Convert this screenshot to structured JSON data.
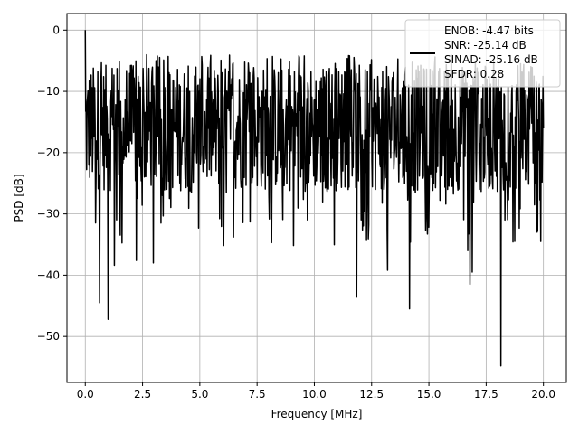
{
  "chart_data": {
    "type": "line",
    "xlabel": "Frequency [MHz]",
    "ylabel": "PSD [dB]",
    "xlim": [
      -0.8,
      21.0
    ],
    "ylim": [
      -57.5,
      2.7
    ],
    "xticks": [
      0.0,
      2.5,
      5.0,
      7.5,
      10.0,
      12.5,
      15.0,
      17.5,
      20.0
    ],
    "xtick_labels": [
      "0.0",
      "2.5",
      "5.0",
      "7.5",
      "10.0",
      "12.5",
      "15.0",
      "17.5",
      "20.0"
    ],
    "yticks": [
      0,
      -10,
      -20,
      -30,
      -40,
      -50
    ],
    "ytick_labels": [
      "0",
      "−10",
      "−20",
      "−30",
      "−40",
      "−50"
    ],
    "grid": true,
    "legend_position": "top-right",
    "legend_lines": [
      "ENOB: -4.47 bits",
      "SNR: -25.14 dB",
      "SINAD: -25.16 dB",
      "SFDR: 0.28"
    ],
    "series": [
      {
        "color": "#000000",
        "x_start": 0.0,
        "x_end": 20.0,
        "n_points": 1024,
        "band_top_db": -7.0,
        "band_bottom_db": -25.0,
        "peak_db": 0.0,
        "min_db": -54.8,
        "deep_dips": [
          {
            "x": 0.62,
            "y": -44.5
          },
          {
            "x": 1.0,
            "y": -47.2
          },
          {
            "x": 1.28,
            "y": -38.4
          },
          {
            "x": 2.22,
            "y": -37.6
          },
          {
            "x": 2.98,
            "y": -38.0
          },
          {
            "x": 11.85,
            "y": -43.6
          },
          {
            "x": 13.2,
            "y": -39.2
          },
          {
            "x": 14.15,
            "y": -45.5
          },
          {
            "x": 16.7,
            "y": -36.0
          },
          {
            "x": 16.8,
            "y": -41.5
          },
          {
            "x": 16.9,
            "y": -39.5
          },
          {
            "x": 18.15,
            "y": -54.8
          }
        ]
      }
    ]
  }
}
